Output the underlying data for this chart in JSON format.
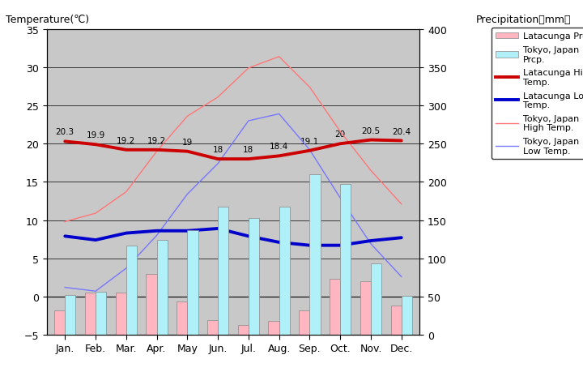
{
  "months": [
    "Jan.",
    "Feb.",
    "Mar.",
    "Apr.",
    "May",
    "Jun.",
    "Jul.",
    "Aug.",
    "Sep.",
    "Oct.",
    "Nov.",
    "Dec."
  ],
  "latacunga_high": [
    20.3,
    19.9,
    19.2,
    19.2,
    19.0,
    18.0,
    18.0,
    18.4,
    19.1,
    20.0,
    20.5,
    20.4
  ],
  "latacunga_low": [
    7.9,
    7.4,
    8.3,
    8.6,
    8.6,
    8.9,
    7.9,
    7.1,
    6.7,
    6.7,
    7.3,
    7.7
  ],
  "tokyo_high": [
    9.8,
    10.9,
    13.7,
    19.0,
    23.6,
    26.1,
    29.9,
    31.4,
    27.4,
    21.6,
    16.5,
    12.1
  ],
  "tokyo_low": [
    1.2,
    0.7,
    3.7,
    8.0,
    13.4,
    17.4,
    23.0,
    23.9,
    19.2,
    12.9,
    6.9,
    2.6
  ],
  "latacunga_prcp_mm": [
    32,
    55,
    55,
    80,
    43,
    19,
    13,
    18,
    32,
    73,
    70,
    38
  ],
  "tokyo_prcp_mm": [
    52,
    56,
    117,
    124,
    137,
    168,
    153,
    168,
    210,
    197,
    93,
    51
  ],
  "plot_bg_color": "#c8c8c8",
  "latacunga_high_color": "#cc0000",
  "latacunga_low_color": "#0000cc",
  "tokyo_high_color": "#ff7777",
  "tokyo_low_color": "#7777ff",
  "latacunga_prcp_color": "#ffb6c1",
  "tokyo_prcp_color": "#b0f0f8",
  "ylim_temp": [
    -5,
    35
  ],
  "ylim_prcp": [
    0,
    400
  ],
  "high_labels": [
    "20.3",
    "19.9",
    "19.2",
    "19.2",
    "19",
    "18",
    "18",
    "18.4",
    "19.1",
    "20",
    "20.5",
    "20.4"
  ]
}
